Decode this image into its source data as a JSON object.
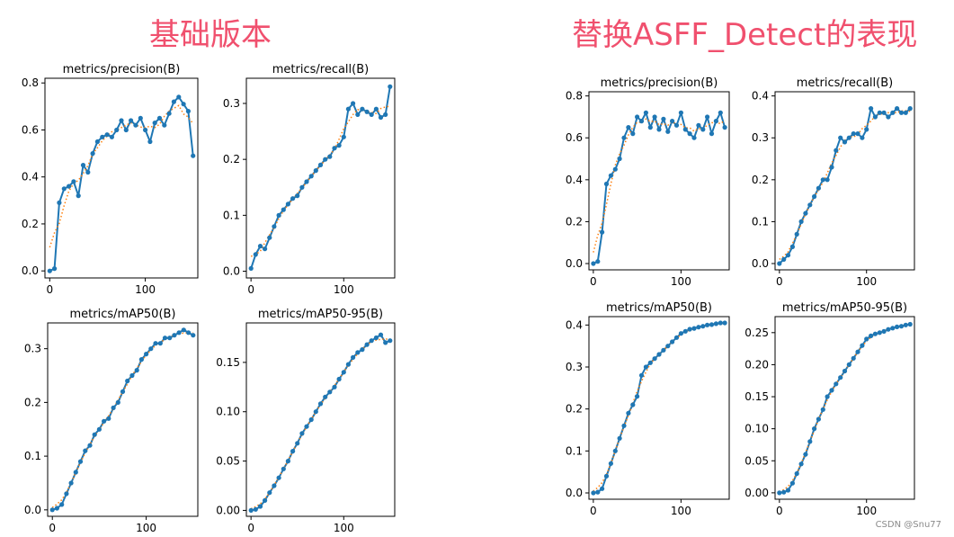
{
  "headings": {
    "left": "基础版本",
    "right": "替换ASFF_Detect的表现"
  },
  "watermark": "CSDN @Snu77",
  "series_colors": {
    "main": "#1f77b4",
    "smooth": "#ff7f0e"
  },
  "chart_data": [
    {
      "type": "line",
      "group": "left",
      "title": "metrics/precision(B)",
      "xlim": [
        -5,
        155
      ],
      "ylim": [
        -0.03,
        0.82
      ],
      "xticks": [
        0,
        100
      ],
      "yticks": [
        0.0,
        0.2,
        0.4,
        0.6,
        0.8
      ],
      "yticklabels": [
        "0.0",
        "0.2",
        "0.4",
        "0.6",
        "0.8"
      ],
      "x": [
        0,
        5,
        10,
        15,
        20,
        25,
        30,
        35,
        40,
        45,
        50,
        55,
        60,
        65,
        70,
        75,
        80,
        85,
        90,
        95,
        100,
        105,
        110,
        115,
        120,
        125,
        130,
        135,
        140,
        145,
        150
      ],
      "y": [
        0.0,
        0.01,
        0.29,
        0.35,
        0.36,
        0.38,
        0.32,
        0.45,
        0.42,
        0.5,
        0.55,
        0.57,
        0.58,
        0.57,
        0.6,
        0.64,
        0.6,
        0.64,
        0.62,
        0.65,
        0.6,
        0.55,
        0.63,
        0.65,
        0.62,
        0.67,
        0.72,
        0.74,
        0.71,
        0.68,
        0.49
      ]
    },
    {
      "type": "line",
      "group": "left",
      "title": "metrics/recall(B)",
      "xlim": [
        -5,
        155
      ],
      "ylim": [
        -0.012,
        0.345
      ],
      "xticks": [
        0,
        100
      ],
      "yticks": [
        0.0,
        0.1,
        0.2,
        0.3
      ],
      "yticklabels": [
        "0.0",
        "0.1",
        "0.2",
        "0.3"
      ],
      "x": [
        0,
        5,
        10,
        15,
        20,
        25,
        30,
        35,
        40,
        45,
        50,
        55,
        60,
        65,
        70,
        75,
        80,
        85,
        90,
        95,
        100,
        105,
        110,
        115,
        120,
        125,
        130,
        135,
        140,
        145,
        150
      ],
      "y": [
        0.005,
        0.03,
        0.045,
        0.04,
        0.06,
        0.08,
        0.1,
        0.11,
        0.12,
        0.13,
        0.135,
        0.15,
        0.16,
        0.17,
        0.18,
        0.19,
        0.2,
        0.205,
        0.22,
        0.225,
        0.24,
        0.29,
        0.3,
        0.28,
        0.29,
        0.285,
        0.28,
        0.29,
        0.275,
        0.28,
        0.33
      ]
    },
    {
      "type": "line",
      "group": "left",
      "title": "metrics/mAP50(B)",
      "xlim": [
        -5,
        155
      ],
      "ylim": [
        -0.012,
        0.348
      ],
      "xticks": [
        0,
        100
      ],
      "yticks": [
        0.0,
        0.1,
        0.2,
        0.3
      ],
      "yticklabels": [
        "0.0",
        "0.1",
        "0.2",
        "0.3"
      ],
      "x": [
        0,
        5,
        10,
        15,
        20,
        25,
        30,
        35,
        40,
        45,
        50,
        55,
        60,
        65,
        70,
        75,
        80,
        85,
        90,
        95,
        100,
        105,
        110,
        115,
        120,
        125,
        130,
        135,
        140,
        145,
        150
      ],
      "y": [
        0.0,
        0.003,
        0.01,
        0.03,
        0.05,
        0.07,
        0.09,
        0.11,
        0.12,
        0.14,
        0.15,
        0.165,
        0.17,
        0.19,
        0.2,
        0.22,
        0.24,
        0.25,
        0.26,
        0.28,
        0.29,
        0.3,
        0.31,
        0.31,
        0.32,
        0.32,
        0.325,
        0.33,
        0.335,
        0.33,
        0.325
      ]
    },
    {
      "type": "line",
      "group": "left",
      "title": "metrics/mAP50-95(B)",
      "xlim": [
        -5,
        155
      ],
      "ylim": [
        -0.006,
        0.19
      ],
      "xticks": [
        0,
        100
      ],
      "yticks": [
        0.0,
        0.05,
        0.1,
        0.15
      ],
      "yticklabels": [
        "0.00",
        "0.05",
        "0.10",
        "0.15"
      ],
      "x": [
        0,
        5,
        10,
        15,
        20,
        25,
        30,
        35,
        40,
        45,
        50,
        55,
        60,
        65,
        70,
        75,
        80,
        85,
        90,
        95,
        100,
        105,
        110,
        115,
        120,
        125,
        130,
        135,
        140,
        145,
        150
      ],
      "y": [
        0.0,
        0.001,
        0.004,
        0.01,
        0.018,
        0.025,
        0.033,
        0.042,
        0.05,
        0.06,
        0.068,
        0.078,
        0.085,
        0.092,
        0.1,
        0.108,
        0.115,
        0.12,
        0.125,
        0.133,
        0.14,
        0.148,
        0.155,
        0.16,
        0.163,
        0.168,
        0.172,
        0.175,
        0.178,
        0.17,
        0.172
      ]
    },
    {
      "type": "line",
      "group": "right",
      "title": "metrics/precision(B)",
      "xlim": [
        -5,
        155
      ],
      "ylim": [
        -0.03,
        0.82
      ],
      "xticks": [
        0,
        100
      ],
      "yticks": [
        0.0,
        0.2,
        0.4,
        0.6,
        0.8
      ],
      "yticklabels": [
        "0.0",
        "0.2",
        "0.4",
        "0.6",
        "0.8"
      ],
      "x": [
        0,
        5,
        10,
        15,
        20,
        25,
        30,
        35,
        40,
        45,
        50,
        55,
        60,
        65,
        70,
        75,
        80,
        85,
        90,
        95,
        100,
        105,
        110,
        115,
        120,
        125,
        130,
        135,
        140,
        145,
        150
      ],
      "y": [
        0.0,
        0.01,
        0.15,
        0.38,
        0.42,
        0.45,
        0.5,
        0.6,
        0.65,
        0.62,
        0.7,
        0.68,
        0.72,
        0.65,
        0.7,
        0.64,
        0.69,
        0.63,
        0.68,
        0.66,
        0.72,
        0.64,
        0.62,
        0.6,
        0.66,
        0.64,
        0.7,
        0.62,
        0.68,
        0.72,
        0.65
      ]
    },
    {
      "type": "line",
      "group": "right",
      "title": "metrics/recall(B)",
      "xlim": [
        -5,
        155
      ],
      "ylim": [
        -0.015,
        0.41
      ],
      "xticks": [
        0,
        100
      ],
      "yticks": [
        0.0,
        0.1,
        0.2,
        0.3,
        0.4
      ],
      "yticklabels": [
        "0.0",
        "0.1",
        "0.2",
        "0.3",
        "0.4"
      ],
      "x": [
        0,
        5,
        10,
        15,
        20,
        25,
        30,
        35,
        40,
        45,
        50,
        55,
        60,
        65,
        70,
        75,
        80,
        85,
        90,
        95,
        100,
        105,
        110,
        115,
        120,
        125,
        130,
        135,
        140,
        145,
        150
      ],
      "y": [
        0.0,
        0.01,
        0.02,
        0.04,
        0.07,
        0.1,
        0.12,
        0.14,
        0.16,
        0.18,
        0.2,
        0.2,
        0.23,
        0.27,
        0.3,
        0.29,
        0.3,
        0.31,
        0.31,
        0.3,
        0.32,
        0.37,
        0.35,
        0.36,
        0.36,
        0.35,
        0.36,
        0.37,
        0.36,
        0.36,
        0.37
      ]
    },
    {
      "type": "line",
      "group": "right",
      "title": "metrics/mAP50(B)",
      "xlim": [
        -5,
        155
      ],
      "ylim": [
        -0.015,
        0.42
      ],
      "xticks": [
        0,
        100
      ],
      "yticks": [
        0.0,
        0.1,
        0.2,
        0.3,
        0.4
      ],
      "yticklabels": [
        "0.0",
        "0.1",
        "0.2",
        "0.3",
        "0.4"
      ],
      "x": [
        0,
        5,
        10,
        15,
        20,
        25,
        30,
        35,
        40,
        45,
        50,
        55,
        60,
        65,
        70,
        75,
        80,
        85,
        90,
        95,
        100,
        105,
        110,
        115,
        120,
        125,
        130,
        135,
        140,
        145,
        150
      ],
      "y": [
        0.0,
        0.002,
        0.01,
        0.04,
        0.07,
        0.1,
        0.13,
        0.16,
        0.19,
        0.21,
        0.23,
        0.28,
        0.3,
        0.31,
        0.32,
        0.33,
        0.34,
        0.35,
        0.36,
        0.37,
        0.38,
        0.385,
        0.39,
        0.392,
        0.395,
        0.397,
        0.4,
        0.401,
        0.403,
        0.405,
        0.405
      ]
    },
    {
      "type": "line",
      "group": "right",
      "title": "metrics/mAP50-95(B)",
      "xlim": [
        -5,
        155
      ],
      "ylim": [
        -0.01,
        0.275
      ],
      "xticks": [
        0,
        100
      ],
      "yticks": [
        0.0,
        0.05,
        0.1,
        0.15,
        0.2,
        0.25
      ],
      "yticklabels": [
        "0.00",
        "0.05",
        "0.10",
        "0.15",
        "0.20",
        "0.25"
      ],
      "x": [
        0,
        5,
        10,
        15,
        20,
        25,
        30,
        35,
        40,
        45,
        50,
        55,
        60,
        65,
        70,
        75,
        80,
        85,
        90,
        95,
        100,
        105,
        110,
        115,
        120,
        125,
        130,
        135,
        140,
        145,
        150
      ],
      "y": [
        0.0,
        0.001,
        0.004,
        0.015,
        0.03,
        0.045,
        0.06,
        0.08,
        0.1,
        0.115,
        0.13,
        0.15,
        0.16,
        0.17,
        0.18,
        0.19,
        0.2,
        0.21,
        0.22,
        0.23,
        0.24,
        0.245,
        0.248,
        0.25,
        0.252,
        0.255,
        0.257,
        0.259,
        0.26,
        0.262,
        0.263
      ]
    }
  ]
}
